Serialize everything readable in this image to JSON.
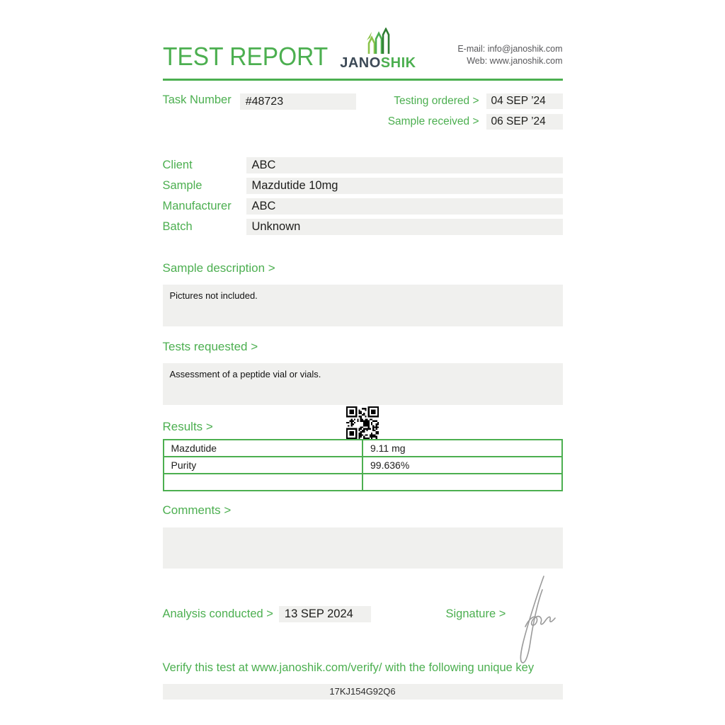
{
  "header": {
    "title": "TEST REPORT",
    "logo": {
      "jano": "JANO",
      "shik": "SHIK"
    },
    "contact": {
      "email_label": "E-mail:",
      "email": "info@janoshik.com",
      "web_label": "Web:",
      "web": "www.janoshik.com"
    }
  },
  "task": {
    "label": "Task Number",
    "number": "#48723",
    "testing_ordered_label": "Testing ordered >",
    "testing_ordered_date": "04 SEP ’24",
    "sample_received_label": "Sample received >",
    "sample_received_date": "06 SEP ’24"
  },
  "fields": [
    {
      "label": "Client",
      "value": "ABC"
    },
    {
      "label": "Sample",
      "value": "Mazdutide 10mg"
    },
    {
      "label": "Manufacturer",
      "value": "ABC"
    },
    {
      "label": "Batch",
      "value": "Unknown"
    }
  ],
  "sample_description": {
    "heading": "Sample description >",
    "text": "Pictures not included."
  },
  "tests_requested": {
    "heading": "Tests requested >",
    "text": "Assessment of a peptide vial or vials."
  },
  "results": {
    "heading": "Results >",
    "rows": [
      {
        "name": "Mazdutide",
        "value": "9.11 mg"
      },
      {
        "name": "Purity",
        "value": "99.636%"
      },
      {
        "name": "",
        "value": ""
      }
    ]
  },
  "comments": {
    "heading": "Comments >",
    "text": ""
  },
  "footer": {
    "analysis_label": "Analysis conducted >",
    "analysis_date": "13 SEP 2024",
    "signature_label": "Signature >"
  },
  "verify": {
    "text": "Verify this test at www.janoshik.com/verify/ with the following unique key",
    "unique_key": "17KJ154G92Q6"
  },
  "colors": {
    "green": "#4caf50",
    "logo_dark": "#3d4a57",
    "box_gray": "#f0f0ee",
    "text_dark": "#1d1d1b"
  }
}
